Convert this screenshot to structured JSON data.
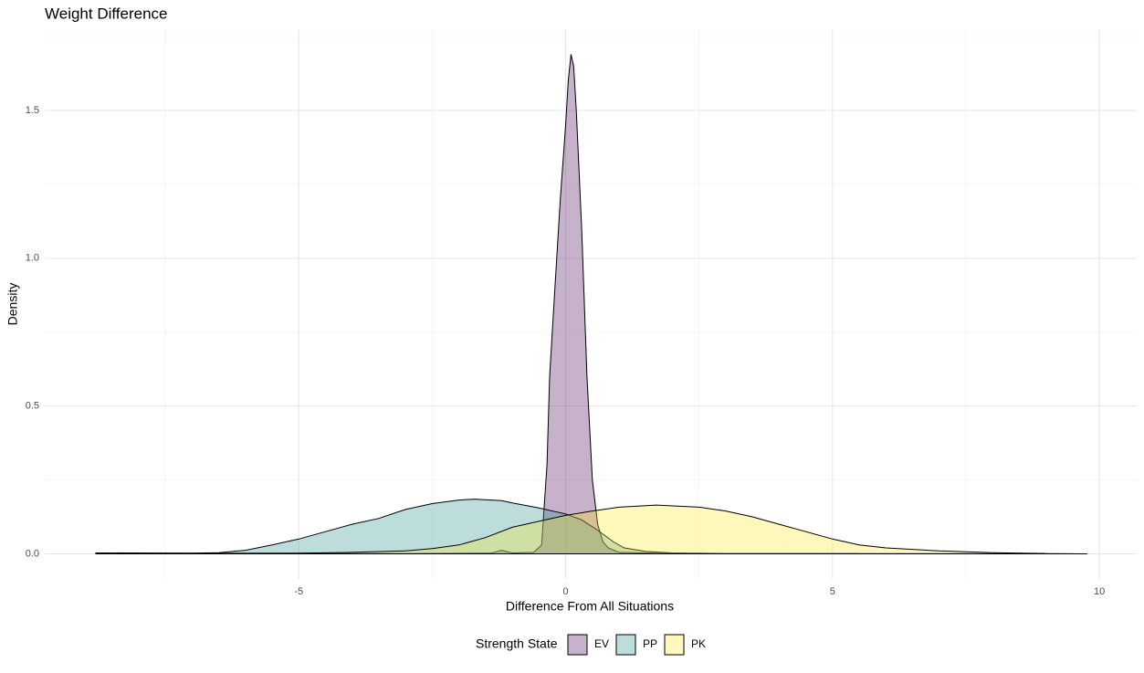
{
  "chart_data": {
    "type": "density",
    "title": "Weight Difference",
    "x_label": "Difference From All Situations",
    "y_label": "Density",
    "legend_title": "Strength State",
    "legend_position": "bottom",
    "grid": true,
    "fill_opacity": 0.3,
    "xlim": [
      -9.76,
      10.7
    ],
    "ylim": [
      -0.085,
      1.775
    ],
    "xticks": [
      -5,
      0,
      5,
      10
    ],
    "yticks": [
      {
        "value": 0,
        "label": "0.0"
      },
      {
        "value": 0.5,
        "label": "0.5"
      },
      {
        "value": 1,
        "label": "1.0"
      },
      {
        "value": 1.5,
        "label": "1.5"
      }
    ],
    "x_minor_grid": [
      -7.5,
      -2.5,
      2.5,
      7.5
    ],
    "y_minor_grid": [
      0.25,
      0.75,
      1.25,
      1.75
    ],
    "series": [
      {
        "name": "EV",
        "color": "#440154",
        "x": [
          -8.8,
          -3,
          -1.4,
          -1.2,
          -1.0,
          -0.6,
          -0.45,
          -0.35,
          -0.3,
          -0.2,
          -0.1,
          0,
          0.05,
          0.1,
          0.15,
          0.2,
          0.3,
          0.4,
          0.5,
          0.6,
          0.7,
          0.8,
          1.0,
          2,
          9.0
        ],
        "values": [
          0.002,
          0.001,
          0.002,
          0.012,
          0.003,
          0.005,
          0.03,
          0.3,
          0.6,
          0.9,
          1.2,
          1.45,
          1.6,
          1.69,
          1.65,
          1.5,
          1.1,
          0.6,
          0.25,
          0.1,
          0.04,
          0.02,
          0.005,
          0.001,
          0.001
        ]
      },
      {
        "name": "PP",
        "color": "#21908C",
        "x": [
          -8.8,
          -7,
          -6.5,
          -6,
          -5.5,
          -5,
          -4.5,
          -4,
          -3.5,
          -3,
          -2.5,
          -2,
          -1.7,
          -1.2,
          -1,
          -0.5,
          0,
          0.3,
          0.6,
          0.9,
          1.1,
          1.5,
          2,
          3,
          5.5
        ],
        "values": [
          0.003,
          0.002,
          0.004,
          0.012,
          0.03,
          0.05,
          0.075,
          0.1,
          0.12,
          0.15,
          0.17,
          0.182,
          0.185,
          0.18,
          0.172,
          0.155,
          0.135,
          0.115,
          0.08,
          0.04,
          0.02,
          0.008,
          0.003,
          0.001,
          0.001
        ]
      },
      {
        "name": "PK",
        "color": "#FDE725",
        "x": [
          -8.8,
          -5,
          -4,
          -3,
          -2.5,
          -2,
          -1.5,
          -1,
          -0.5,
          0,
          0.5,
          1,
          1.7,
          2.5,
          3,
          3.5,
          4,
          4.5,
          5,
          5.5,
          6,
          7,
          8,
          9,
          9.77
        ],
        "values": [
          0.001,
          0.002,
          0.005,
          0.01,
          0.018,
          0.03,
          0.055,
          0.09,
          0.11,
          0.13,
          0.145,
          0.158,
          0.165,
          0.158,
          0.145,
          0.125,
          0.1,
          0.075,
          0.05,
          0.03,
          0.02,
          0.01,
          0.004,
          0.001,
          0.0
        ]
      }
    ]
  }
}
